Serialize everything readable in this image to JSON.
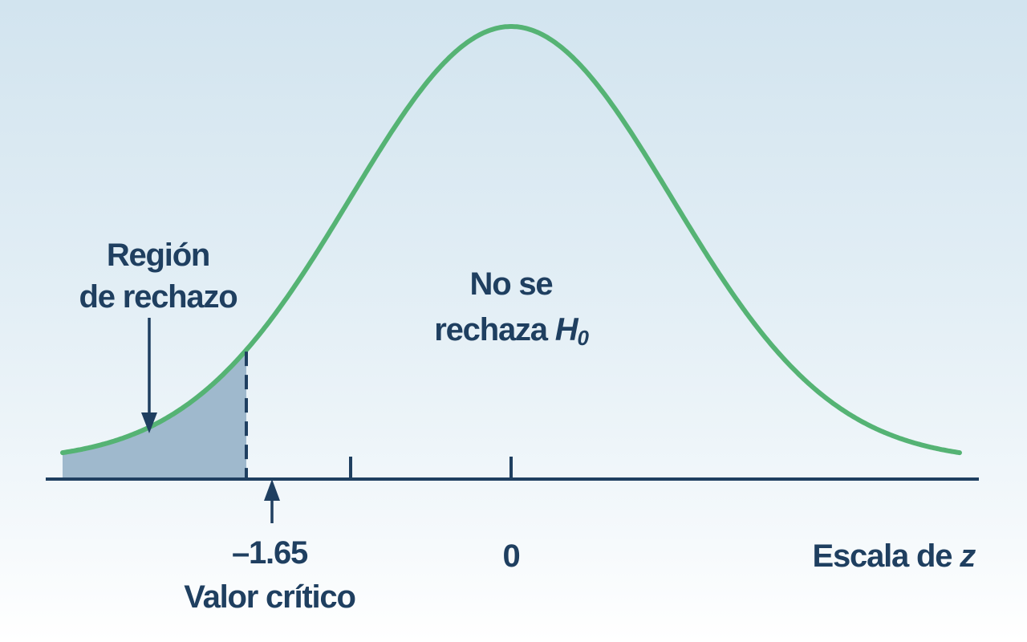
{
  "labels": {
    "rejection_line1": "Región",
    "rejection_line2": "de rechazo",
    "accept_line1": "No se",
    "accept_line2_prefix": "rechaza ",
    "accept_symbol": "H",
    "accept_subscript": "0",
    "critical_value": "–1.65",
    "critical_caption": "Valor crítico",
    "center_value": "0",
    "axis_prefix": "Escala de ",
    "axis_variable": "z"
  },
  "distribution": {
    "type": "standard-normal",
    "mean": 0,
    "critical_z": -1.65,
    "tail": "left",
    "tick_values": [
      -1.65,
      -1,
      0
    ]
  },
  "colors": {
    "curve": "#55b374",
    "axis": "#1f3f60",
    "rejection_fill": "#9fb9cd",
    "text": "#1f3f60"
  }
}
